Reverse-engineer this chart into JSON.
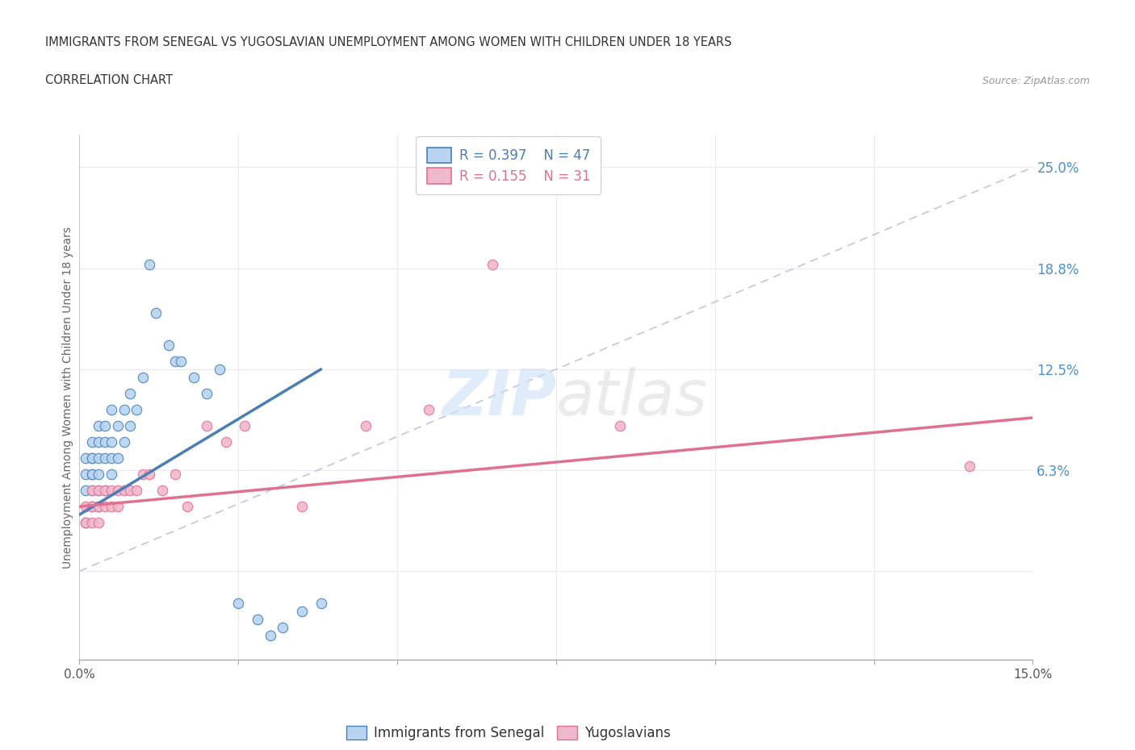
{
  "title": "IMMIGRANTS FROM SENEGAL VS YUGOSLAVIAN UNEMPLOYMENT AMONG WOMEN WITH CHILDREN UNDER 18 YEARS",
  "subtitle": "CORRELATION CHART",
  "source": "Source: ZipAtlas.com",
  "ylabel": "Unemployment Among Women with Children Under 18 years",
  "legend_entries": [
    {
      "label": "Immigrants from Senegal",
      "R": "0.397",
      "N": "47",
      "color": "#a8c8f0"
    },
    {
      "label": "Yugoslavians",
      "R": "0.155",
      "N": "31",
      "color": "#f0a8c0"
    }
  ],
  "xlim": [
    0.0,
    0.15
  ],
  "ylim": [
    -0.055,
    0.27
  ],
  "yticks": [
    0.0,
    0.0625,
    0.125,
    0.1875,
    0.25
  ],
  "ytick_labels": [
    "",
    "6.3%",
    "12.5%",
    "18.8%",
    "25.0%"
  ],
  "xticks": [
    0.0,
    0.025,
    0.05,
    0.075,
    0.1,
    0.125,
    0.15
  ],
  "xtick_labels": [
    "0.0%",
    "",
    "",
    "",
    "",
    "",
    "15.0%"
  ],
  "blue_line_color": "#4a7fb5",
  "pink_line_color": "#e07090",
  "blue_scatter_color": "#b8d4f0",
  "pink_scatter_color": "#f0b8cc",
  "diag_line_color": "#c0c8d8",
  "grid_color": "#e8eaf0",
  "title_color": "#333333",
  "axis_label_color": "#666666",
  "right_tick_color": "#5090c8",
  "blue_scatter_x": [
    0.001,
    0.001,
    0.001,
    0.001,
    0.002,
    0.002,
    0.002,
    0.002,
    0.002,
    0.002,
    0.002,
    0.003,
    0.003,
    0.003,
    0.003,
    0.003,
    0.003,
    0.004,
    0.004,
    0.004,
    0.004,
    0.005,
    0.005,
    0.005,
    0.005,
    0.006,
    0.006,
    0.007,
    0.007,
    0.008,
    0.008,
    0.009,
    0.01,
    0.011,
    0.012,
    0.014,
    0.015,
    0.016,
    0.018,
    0.02,
    0.022,
    0.025,
    0.028,
    0.03,
    0.032,
    0.035,
    0.038
  ],
  "blue_scatter_y": [
    0.03,
    0.05,
    0.06,
    0.07,
    0.04,
    0.05,
    0.06,
    0.07,
    0.08,
    0.06,
    0.07,
    0.04,
    0.05,
    0.06,
    0.07,
    0.08,
    0.09,
    0.05,
    0.07,
    0.08,
    0.09,
    0.06,
    0.07,
    0.08,
    0.1,
    0.07,
    0.09,
    0.08,
    0.1,
    0.09,
    0.11,
    0.1,
    0.12,
    0.19,
    0.16,
    0.14,
    0.13,
    0.13,
    0.12,
    0.11,
    0.125,
    -0.02,
    -0.03,
    -0.04,
    -0.035,
    -0.025,
    -0.02
  ],
  "pink_scatter_x": [
    0.001,
    0.001,
    0.002,
    0.002,
    0.002,
    0.003,
    0.003,
    0.003,
    0.004,
    0.004,
    0.005,
    0.005,
    0.006,
    0.006,
    0.007,
    0.008,
    0.009,
    0.01,
    0.011,
    0.013,
    0.015,
    0.017,
    0.02,
    0.023,
    0.026,
    0.035,
    0.045,
    0.055,
    0.065,
    0.085,
    0.14
  ],
  "pink_scatter_y": [
    0.03,
    0.04,
    0.04,
    0.05,
    0.03,
    0.05,
    0.04,
    0.03,
    0.05,
    0.04,
    0.05,
    0.04,
    0.05,
    0.04,
    0.05,
    0.05,
    0.05,
    0.06,
    0.06,
    0.05,
    0.06,
    0.04,
    0.09,
    0.08,
    0.09,
    0.04,
    0.09,
    0.1,
    0.19,
    0.09,
    0.065
  ],
  "blue_trend_x": [
    0.0,
    0.038
  ],
  "blue_trend_y": [
    0.035,
    0.125
  ],
  "pink_trend_x": [
    0.0,
    0.15
  ],
  "pink_trend_y": [
    0.04,
    0.095
  ],
  "diag_line_x": [
    0.0,
    0.15
  ],
  "diag_line_y": [
    0.0,
    0.25
  ]
}
